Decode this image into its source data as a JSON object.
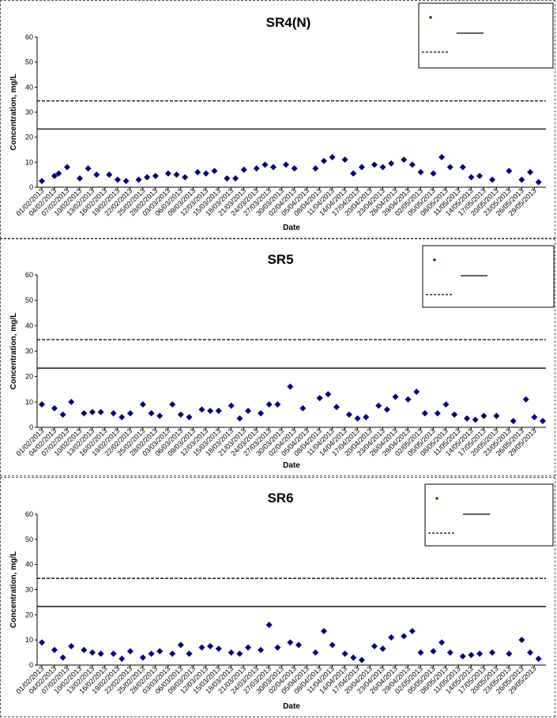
{
  "chart_data": [
    {
      "type": "scatter",
      "title": "SR4(N)",
      "xlabel": "Date",
      "ylabel": "Concentration, mg/L",
      "ylim": [
        0,
        60
      ],
      "yticks": [
        0,
        10,
        20,
        30,
        40,
        50,
        60
      ],
      "xlim": [
        "01/02/2013",
        "31/05/2013"
      ],
      "xtick_labels": [
        "01/02/2013",
        "04/02/2013",
        "07/02/2013",
        "10/02/2013",
        "13/02/2013",
        "16/02/2013",
        "19/02/2013",
        "22/02/2013",
        "25/02/2013",
        "28/02/2013",
        "03/03/2013",
        "06/03/2013",
        "09/03/2013",
        "12/03/2013",
        "15/03/2013",
        "18/03/2013",
        "21/03/2013",
        "24/03/2013",
        "27/03/2013",
        "30/03/2013",
        "02/04/2013",
        "05/04/2013",
        "08/04/2013",
        "11/04/2013",
        "14/04/2013",
        "17/04/2013",
        "20/04/2013",
        "23/04/2013",
        "26/04/2013",
        "29/04/2013",
        "02/05/2013",
        "05/05/2013",
        "08/05/2013",
        "11/05/2013",
        "14/05/2013",
        "17/05/2013",
        "20/05/2013",
        "23/05/2013",
        "26/05/2013",
        "29/05/2013"
      ],
      "grid": false,
      "legend_position": "top-right",
      "reference_lines": [
        {
          "value": 23.3,
          "style": "solid"
        },
        {
          "value": 34.5,
          "style": "dashed"
        }
      ],
      "series": [
        {
          "marker": "diamond",
          "color": "#000080",
          "x": [
            "01/02/2013",
            "04/02/2013",
            "05/02/2013",
            "07/02/2013",
            "10/02/2013",
            "12/02/2013",
            "14/02/2013",
            "17/02/2013",
            "19/02/2013",
            "21/02/2013",
            "24/02/2013",
            "26/02/2013",
            "28/02/2013",
            "03/03/2013",
            "05/03/2013",
            "07/03/2013",
            "10/03/2013",
            "12/03/2013",
            "14/03/2013",
            "17/03/2013",
            "19/03/2013",
            "21/03/2013",
            "24/03/2013",
            "26/03/2013",
            "28/03/2013",
            "31/03/2013",
            "02/04/2013",
            "07/04/2013",
            "09/04/2013",
            "11/04/2013",
            "14/04/2013",
            "16/04/2013",
            "18/04/2013",
            "21/04/2013",
            "23/04/2013",
            "25/04/2013",
            "28/04/2013",
            "30/04/2013",
            "02/05/2013",
            "05/05/2013",
            "07/05/2013",
            "09/05/2013",
            "12/05/2013",
            "14/05/2013",
            "16/05/2013",
            "19/05/2013",
            "23/05/2013",
            "26/05/2013",
            "28/05/2013",
            "30/05/2013"
          ],
          "y": [
            2.5,
            4.5,
            5.5,
            8,
            3.5,
            7.5,
            5,
            5,
            3,
            2.5,
            3,
            4,
            4.5,
            5.5,
            5,
            4,
            6,
            5.5,
            6.5,
            3.5,
            3.5,
            7,
            7.5,
            9,
            8,
            9,
            7.5,
            7.5,
            10.5,
            12,
            11,
            5.5,
            8,
            9,
            8,
            9.5,
            11,
            9,
            6,
            5.5,
            12,
            8,
            8,
            4,
            4.5,
            3,
            6.5,
            3,
            6,
            2
          ]
        }
      ]
    },
    {
      "type": "scatter",
      "title": "SR5",
      "xlabel": "Date",
      "ylabel": "Concentration, mg/L",
      "ylim": [
        0,
        60
      ],
      "yticks": [
        0,
        10,
        20,
        30,
        40,
        50,
        60
      ],
      "xlim": [
        "01/02/2013",
        "31/05/2013"
      ],
      "xtick_labels": [
        "01/02/2013",
        "04/02/2013",
        "07/02/2013",
        "10/02/2013",
        "13/02/2013",
        "16/02/2013",
        "19/02/2013",
        "22/02/2013",
        "25/02/2013",
        "28/02/2013",
        "03/03/2013",
        "06/03/2013",
        "09/03/2013",
        "12/03/2013",
        "15/03/2013",
        "18/03/2013",
        "21/03/2013",
        "24/03/2013",
        "27/03/2013",
        "30/03/2013",
        "02/04/2013",
        "05/04/2013",
        "08/04/2013",
        "11/04/2013",
        "14/04/2013",
        "17/04/2013",
        "20/04/2013",
        "23/04/2013",
        "26/04/2013",
        "29/04/2013",
        "02/05/2013",
        "05/05/2013",
        "08/05/2013",
        "11/05/2013",
        "14/05/2013",
        "17/05/2013",
        "20/05/2013",
        "23/05/2013",
        "26/05/2013",
        "29/05/2013"
      ],
      "grid": false,
      "legend_position": "top-right",
      "reference_lines": [
        {
          "value": 23.3,
          "style": "solid"
        },
        {
          "value": 34.5,
          "style": "dashed"
        }
      ],
      "series": [
        {
          "marker": "diamond",
          "color": "#000080",
          "x": [
            "01/02/2013",
            "04/02/2013",
            "06/02/2013",
            "08/02/2013",
            "11/02/2013",
            "13/02/2013",
            "15/02/2013",
            "18/02/2013",
            "20/02/2013",
            "22/02/2013",
            "25/02/2013",
            "27/02/2013",
            "01/03/2013",
            "04/03/2013",
            "06/03/2013",
            "08/03/2013",
            "11/03/2013",
            "13/03/2013",
            "15/03/2013",
            "18/03/2013",
            "20/03/2013",
            "22/03/2013",
            "25/03/2013",
            "27/03/2013",
            "29/03/2013",
            "01/04/2013",
            "04/04/2013",
            "08/04/2013",
            "10/04/2013",
            "12/04/2013",
            "15/04/2013",
            "17/04/2013",
            "19/04/2013",
            "22/04/2013",
            "24/04/2013",
            "26/04/2013",
            "29/04/2013",
            "01/05/2013",
            "03/05/2013",
            "06/05/2013",
            "08/05/2013",
            "10/05/2013",
            "13/05/2013",
            "15/05/2013",
            "17/05/2013",
            "20/05/2013",
            "24/05/2013",
            "27/05/2013",
            "29/05/2013",
            "31/05/2013"
          ],
          "y": [
            9,
            7.5,
            5,
            10,
            5.5,
            6,
            6,
            5.5,
            4,
            5.5,
            9,
            5.5,
            4.5,
            9,
            5,
            4,
            7,
            6.5,
            6.5,
            8.5,
            3.5,
            6.5,
            5.5,
            9,
            9,
            16,
            7.5,
            11.5,
            13,
            8,
            5,
            3.5,
            4,
            8.5,
            7,
            12,
            11,
            14,
            5.5,
            5.5,
            9,
            5,
            3.5,
            3,
            4.5,
            4.5,
            2.5,
            11,
            4,
            2.5
          ]
        }
      ]
    },
    {
      "type": "scatter",
      "title": "SR6",
      "xlabel": "Date",
      "ylabel": "Concentration, mg/L",
      "ylim": [
        0,
        60
      ],
      "yticks": [
        0,
        10,
        20,
        30,
        40,
        50,
        60
      ],
      "xlim": [
        "01/02/2013",
        "31/05/2013"
      ],
      "xtick_labels": [
        "01/02/2013",
        "04/02/2013",
        "07/02/2013",
        "10/02/2013",
        "13/02/2013",
        "16/02/2013",
        "19/02/2013",
        "22/02/2013",
        "25/02/2013",
        "28/02/2013",
        "03/03/2013",
        "06/03/2013",
        "09/03/2013",
        "12/03/2013",
        "15/03/2013",
        "18/03/2013",
        "21/03/2013",
        "24/03/2013",
        "27/03/2013",
        "30/03/2013",
        "02/04/2013",
        "05/04/2013",
        "08/04/2013",
        "11/04/2013",
        "14/04/2013",
        "17/04/2013",
        "20/04/2013",
        "23/04/2013",
        "26/04/2013",
        "29/04/2013",
        "02/05/2013",
        "05/05/2013",
        "08/05/2013",
        "11/05/2013",
        "14/05/2013",
        "17/05/2013",
        "20/05/2013",
        "23/05/2013",
        "26/05/2013",
        "29/05/2013"
      ],
      "grid": false,
      "legend_position": "top-right",
      "reference_lines": [
        {
          "value": 23.3,
          "style": "solid"
        },
        {
          "value": 34.5,
          "style": "dashed"
        }
      ],
      "series": [
        {
          "marker": "diamond",
          "color": "#000080",
          "x": [
            "01/02/2013",
            "04/02/2013",
            "06/02/2013",
            "08/02/2013",
            "11/02/2013",
            "13/02/2013",
            "15/02/2013",
            "18/02/2013",
            "20/02/2013",
            "22/02/2013",
            "25/02/2013",
            "27/02/2013",
            "01/03/2013",
            "04/03/2013",
            "06/03/2013",
            "08/03/2013",
            "11/03/2013",
            "13/03/2013",
            "15/03/2013",
            "18/03/2013",
            "20/03/2013",
            "22/03/2013",
            "25/03/2013",
            "27/03/2013",
            "29/03/2013",
            "01/04/2013",
            "03/04/2013",
            "07/04/2013",
            "09/04/2013",
            "11/04/2013",
            "14/04/2013",
            "16/04/2013",
            "18/04/2013",
            "21/04/2013",
            "23/04/2013",
            "25/04/2013",
            "28/04/2013",
            "30/04/2013",
            "02/05/2013",
            "05/05/2013",
            "07/05/2013",
            "09/05/2013",
            "12/05/2013",
            "14/05/2013",
            "16/05/2013",
            "19/05/2013",
            "23/05/2013",
            "26/05/2013",
            "28/05/2013",
            "30/05/2013"
          ],
          "y": [
            9,
            6,
            3,
            7.5,
            6,
            5,
            4.5,
            4.5,
            2.5,
            5.5,
            3,
            4.5,
            5.5,
            4.5,
            8,
            4.5,
            7,
            7.5,
            6.5,
            5,
            4.5,
            7,
            6,
            16,
            7,
            9,
            8,
            5,
            13.5,
            8,
            4.5,
            3,
            2,
            7.5,
            6.5,
            11,
            11.5,
            13.5,
            5,
            5.5,
            9,
            5,
            3.5,
            4,
            4.5,
            5,
            4.5,
            10,
            5,
            2.5
          ]
        }
      ]
    }
  ]
}
